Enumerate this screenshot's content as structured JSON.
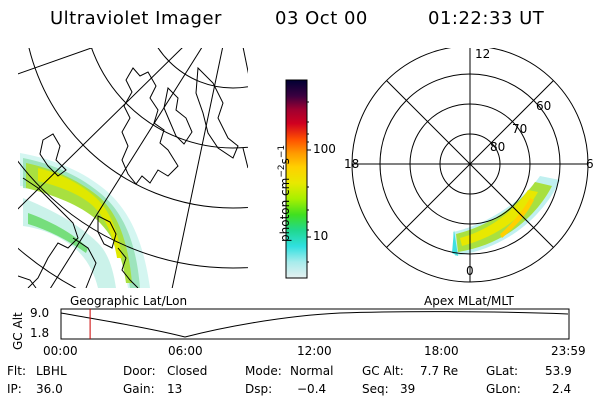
{
  "header": {
    "instrument": "Ultraviolet Imager",
    "date": "03 Oct 00",
    "time": "01:22:33 UT"
  },
  "left_panel": {
    "caption": "Geographic Lat/Lon"
  },
  "right_panel": {
    "caption": "Apex MLat/MLT",
    "mlt_labels": [
      "12",
      "18",
      "6",
      "0"
    ],
    "mlat_labels": [
      "60",
      "70",
      "80"
    ]
  },
  "colorbar": {
    "unit_label": "photon cm",
    "unit_sup1": "−2",
    "unit_mid": "s",
    "unit_sup2": "−1",
    "ticks": [
      "100",
      "10"
    ],
    "colors": [
      "#000033",
      "#3a0040",
      "#6a0040",
      "#a00030",
      "#d00020",
      "#ff4000",
      "#ff8a00",
      "#ffc800",
      "#e8e800",
      "#b0f000",
      "#60e000",
      "#20d040",
      "#20d8a0",
      "#40e0e0",
      "#a8ecec",
      "#e0f0f0"
    ]
  },
  "altitude_plot": {
    "ylabel": "GC Alt",
    "yticks": [
      "9.0",
      "1.8"
    ],
    "xticks": [
      "00:00",
      "06:00",
      "12:00",
      "18:00",
      "23:59"
    ],
    "marker_time_hours": 1.375,
    "line_color": "#cc0000"
  },
  "info": {
    "filter_label": "Flt:",
    "filter_value": "LBHL",
    "ip_label": "IP:",
    "ip_value": "36.0",
    "door_label": "Door:",
    "door_value": "Closed",
    "gain_label": "Gain:",
    "gain_value": "13",
    "mode_label": "Mode:",
    "mode_value": "Normal",
    "dsp_label": "Dsp:",
    "dsp_value": "−0.4",
    "gcalt_label": "GC Alt:",
    "gcalt_value": "7.7 Re",
    "seq_label": "Seq:",
    "seq_value": "39",
    "glat_label": "GLat:",
    "glat_value": "53.9",
    "glon_label": "GLon:",
    "glon_value": "2.4"
  }
}
